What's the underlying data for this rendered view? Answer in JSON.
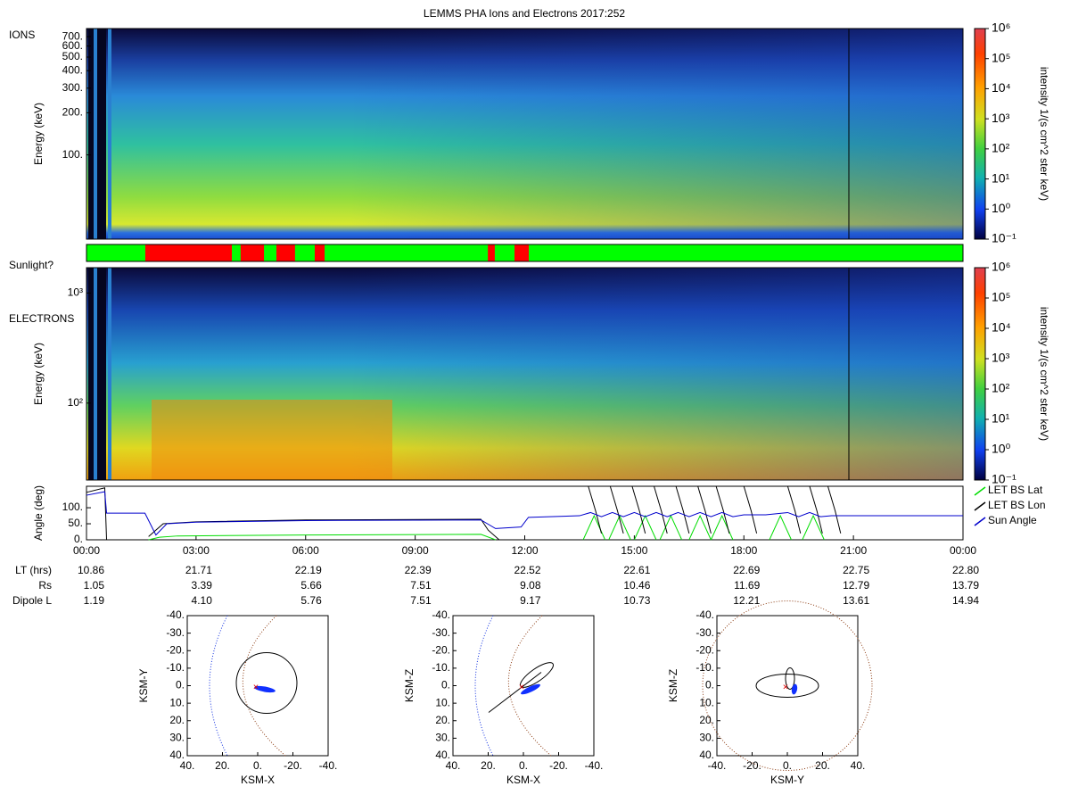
{
  "title": "LEMMS PHA Ions and Electrons  2017:252",
  "chart_data": [
    {
      "type": "heatmap",
      "label": "IONS",
      "ylabel": "Energy (keV)",
      "ylog": true,
      "ylim": [
        25,
        800
      ],
      "yticks": [
        {
          "value": 100,
          "label": "100."
        },
        {
          "value": 200,
          "label": "200."
        },
        {
          "value": 300,
          "label": "300."
        },
        {
          "value": 400,
          "label": "400."
        },
        {
          "value": 500,
          "label": "500."
        },
        {
          "value": 600,
          "label": "600."
        },
        {
          "value": 700,
          "label": "700."
        }
      ],
      "colorbar": {
        "label": "intensity 1/(s cm^2 ster keV)",
        "log": true,
        "lim": [
          0.1,
          1000000
        ],
        "ticks": [
          {
            "value": 0.1,
            "label": "10⁻¹"
          },
          {
            "value": 1,
            "label": "10⁰"
          },
          {
            "value": 10,
            "label": "10¹"
          },
          {
            "value": 100,
            "label": "10²"
          },
          {
            "value": 1000,
            "label": "10³"
          },
          {
            "value": 10000,
            "label": "10⁴"
          },
          {
            "value": 100000,
            "label": "10⁵"
          },
          {
            "value": 1000000,
            "label": "10⁶"
          }
        ]
      }
    },
    {
      "type": "timeline",
      "label": "Sunlight?",
      "xlim": [
        0,
        24
      ],
      "sunlit_color": "#00ff00",
      "shadow_color": "#ff0000",
      "shadow_intervals": [
        [
          1.61,
          3.98
        ],
        [
          4.22,
          4.86
        ],
        [
          5.2,
          5.71
        ],
        [
          6.25,
          6.52
        ],
        [
          10.99,
          11.18
        ],
        [
          11.72,
          12.11
        ]
      ]
    },
    {
      "type": "heatmap",
      "label": "ELECTRONS",
      "ylabel": "Energy (keV)",
      "ylog": true,
      "ylim": [
        20,
        1700
      ],
      "yticks": [
        {
          "value": 100,
          "label": "10²"
        },
        {
          "value": 1000,
          "label": "10³"
        }
      ],
      "colorbar": {
        "label": "intensity 1/(s cm^2 ster keV)",
        "log": true,
        "lim": [
          0.1,
          1000000
        ],
        "ticks": [
          {
            "value": 0.1,
            "label": "10⁻¹"
          },
          {
            "value": 1,
            "label": "10⁰"
          },
          {
            "value": 10,
            "label": "10¹"
          },
          {
            "value": 100,
            "label": "10²"
          },
          {
            "value": 1000,
            "label": "10³"
          },
          {
            "value": 10000,
            "label": "10⁴"
          },
          {
            "value": 100000,
            "label": "10⁵"
          },
          {
            "value": 1000000,
            "label": "10⁶"
          }
        ]
      }
    },
    {
      "type": "line",
      "ylabel": "Angle (deg)",
      "xlim": [
        0,
        24
      ],
      "ylim": [
        0,
        167
      ],
      "yticks": [
        {
          "value": 0,
          "label": "0."
        },
        {
          "value": 50,
          "label": "50."
        },
        {
          "value": 100,
          "label": "100."
        }
      ],
      "xticks": [
        {
          "value": 0,
          "label": "00:00"
        },
        {
          "value": 3,
          "label": "03:00"
        },
        {
          "value": 6,
          "label": "06:00"
        },
        {
          "value": 9,
          "label": "09:00"
        },
        {
          "value": 12,
          "label": "12:00"
        },
        {
          "value": 15,
          "label": "15:00"
        },
        {
          "value": 18,
          "label": "18:00"
        },
        {
          "value": 21,
          "label": "21:00"
        },
        {
          "value": 24,
          "label": "00:00"
        }
      ],
      "series": [
        {
          "name": "LET BS Lat",
          "color": "#00dd00",
          "x": [
            1.7,
            2.0,
            2.5,
            6,
            10.8,
            11.2,
            null,
            13.6,
            13.9,
            14.2,
            null,
            14.3,
            14.6,
            14.9,
            null,
            15.0,
            15.3,
            15.6,
            null,
            15.7,
            16.0,
            16.3,
            null,
            16.5,
            16.8,
            17.1,
            null,
            17.1,
            17.4,
            17.7,
            null,
            18.7,
            19.0,
            19.3,
            null,
            19.6,
            19.9,
            20.2
          ],
          "values": [
            0,
            8,
            12,
            15,
            17,
            0,
            null,
            0,
            75,
            0,
            null,
            0,
            75,
            0,
            null,
            0,
            75,
            0,
            null,
            0,
            75,
            0,
            null,
            0,
            75,
            0,
            null,
            0,
            75,
            0,
            null,
            0,
            75,
            0,
            null,
            0,
            75,
            0
          ]
        },
        {
          "name": "LET BS Lon",
          "color": "#000000",
          "x": [
            0,
            0.5,
            0.55,
            null,
            1.7,
            2.1,
            3,
            6,
            10.8,
            11.0,
            11.3,
            null,
            13.74,
            13.94,
            14.1,
            null,
            14.34,
            14.54,
            14.7,
            null,
            14.94,
            15.14,
            15.3,
            null,
            15.54,
            15.74,
            15.9,
            null,
            16.14,
            16.34,
            16.5,
            null,
            16.74,
            16.94,
            17.1,
            null,
            17.24,
            17.44,
            17.6,
            null,
            18.0,
            18.2,
            18.35,
            null,
            19.2,
            19.4,
            19.55,
            null,
            19.8,
            20.0,
            20.15,
            null,
            20.3,
            20.5,
            20.65
          ],
          "values": [
            148,
            162,
            0,
            null,
            10,
            50,
            56,
            62,
            64,
            30,
            0,
            null,
            167,
            90,
            20,
            null,
            167,
            90,
            20,
            null,
            167,
            90,
            20,
            null,
            167,
            90,
            20,
            null,
            167,
            90,
            20,
            null,
            167,
            90,
            20,
            null,
            167,
            90,
            20,
            null,
            167,
            90,
            20,
            null,
            167,
            90,
            20,
            null,
            167,
            90,
            20,
            null,
            167,
            90,
            20
          ]
        },
        {
          "name": "Sun Angle",
          "color": "#0000cc",
          "x": [
            0,
            0.5,
            0.55,
            1.6,
            1.9,
            2.2,
            3,
            6,
            10.8,
            11.2,
            11.9,
            12.1,
            13.5,
            13.8,
            14.1,
            14.4,
            14.7,
            15.0,
            15.3,
            15.6,
            15.9,
            16.2,
            16.5,
            16.8,
            17.1,
            17.4,
            17.7,
            18.0,
            18.6,
            19.2,
            19.5,
            19.8,
            20.1,
            20.4,
            24
          ],
          "values": [
            139,
            150,
            83,
            83,
            15,
            50,
            55,
            60,
            62,
            35,
            40,
            70,
            75,
            85,
            72,
            85,
            72,
            85,
            72,
            85,
            72,
            85,
            72,
            85,
            72,
            85,
            72,
            78,
            78,
            85,
            72,
            85,
            72,
            75,
            75
          ]
        }
      ]
    },
    {
      "type": "orbit",
      "xlabel": "KSM-X",
      "ylabel": "KSM-Y",
      "xlim": [
        40,
        -40
      ],
      "ylim": [
        -40,
        40
      ],
      "xticks": [
        {
          "value": 40,
          "label": "40."
        },
        {
          "value": 20,
          "label": "20."
        },
        {
          "value": 0,
          "label": "0."
        },
        {
          "value": -20,
          "label": "-20."
        },
        {
          "value": -40,
          "label": "-40."
        }
      ],
      "yticks": [
        {
          "value": -40,
          "label": "-40."
        },
        {
          "value": -30,
          "label": "-30."
        },
        {
          "value": -20,
          "label": "-20."
        },
        {
          "value": -10,
          "label": "-10."
        },
        {
          "value": 0,
          "label": "0."
        },
        {
          "value": 10,
          "label": "10."
        },
        {
          "value": 20,
          "label": "20."
        },
        {
          "value": 30,
          "label": "30."
        },
        {
          "value": 40,
          "label": "40."
        }
      ]
    },
    {
      "type": "orbit",
      "xlabel": "KSM-X",
      "ylabel": "KSM-Z",
      "xlim": [
        40,
        -40
      ],
      "ylim": [
        -40,
        40
      ],
      "xticks": [
        {
          "value": 40,
          "label": "40."
        },
        {
          "value": 20,
          "label": "20."
        },
        {
          "value": 0,
          "label": "0."
        },
        {
          "value": -20,
          "label": "-20."
        },
        {
          "value": -40,
          "label": "-40."
        }
      ],
      "yticks": [
        {
          "value": -40,
          "label": "-40."
        },
        {
          "value": -30,
          "label": "-30."
        },
        {
          "value": -20,
          "label": "-20."
        },
        {
          "value": -10,
          "label": "-10."
        },
        {
          "value": 0,
          "label": "0."
        },
        {
          "value": 10,
          "label": "10."
        },
        {
          "value": 20,
          "label": "20."
        },
        {
          "value": 30,
          "label": "30."
        },
        {
          "value": 40,
          "label": "40."
        }
      ]
    },
    {
      "type": "orbit",
      "xlabel": "KSM-Y",
      "ylabel": "KSM-Z",
      "xlim": [
        -40,
        40
      ],
      "ylim": [
        -40,
        40
      ],
      "xticks": [
        {
          "value": -40,
          "label": "-40."
        },
        {
          "value": -20,
          "label": "-20."
        },
        {
          "value": 0,
          "label": "0."
        },
        {
          "value": 20,
          "label": "20."
        },
        {
          "value": 40,
          "label": "40."
        }
      ],
      "yticks": [
        {
          "value": -40,
          "label": "-40."
        },
        {
          "value": -30,
          "label": "-30."
        },
        {
          "value": -20,
          "label": "-20."
        },
        {
          "value": -10,
          "label": "-10."
        },
        {
          "value": 0,
          "label": "0."
        },
        {
          "value": 10,
          "label": "10."
        },
        {
          "value": 20,
          "label": "20."
        },
        {
          "value": 30,
          "label": "30."
        },
        {
          "value": 40,
          "label": "40."
        }
      ]
    }
  ],
  "ephemeris": {
    "rows": [
      {
        "label": "LT (hrs)",
        "values": [
          "10.86",
          "21.71",
          "22.19",
          "22.39",
          "22.52",
          "22.61",
          "22.69",
          "22.75",
          "22.80"
        ]
      },
      {
        "label": "Rs",
        "values": [
          "1.05",
          "3.39",
          "5.66",
          "7.51",
          "9.08",
          "10.46",
          "11.69",
          "12.79",
          "13.79"
        ]
      },
      {
        "label": "Dipole L",
        "values": [
          "1.19",
          "4.10",
          "5.76",
          "7.51",
          "9.17",
          "10.73",
          "12.21",
          "13.61",
          "14.94"
        ]
      }
    ]
  }
}
